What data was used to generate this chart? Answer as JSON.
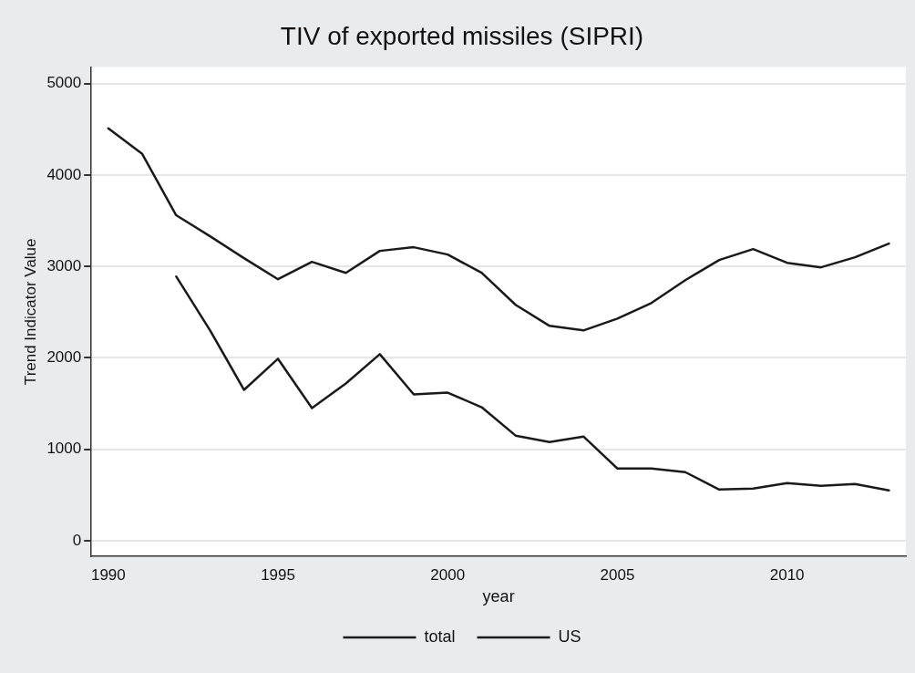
{
  "chart_data": {
    "type": "line",
    "title": "TIV of exported missiles (SIPRI)",
    "xlabel": "year",
    "ylabel": "Trend Indicator Value",
    "x": [
      1990,
      1991,
      1992,
      1993,
      1994,
      1995,
      1996,
      1997,
      1998,
      1999,
      2000,
      2001,
      2002,
      2003,
      2004,
      2005,
      2006,
      2007,
      2008,
      2009,
      2010,
      2011,
      2012,
      2013
    ],
    "series": [
      {
        "name": "total",
        "color": "#1a1a1a",
        "values": [
          4510,
          4230,
          3560,
          3330,
          3090,
          2860,
          3050,
          2930,
          3170,
          3210,
          3130,
          2930,
          2580,
          2350,
          2300,
          2430,
          2600,
          2850,
          3070,
          3190,
          3040,
          2990,
          3100,
          3250
        ]
      },
      {
        "name": "US",
        "color": "#1a1a1a",
        "values": [
          null,
          null,
          2890,
          2300,
          1650,
          1990,
          1450,
          1720,
          2040,
          1600,
          1620,
          1460,
          1150,
          1080,
          1140,
          790,
          790,
          750,
          560,
          570,
          630,
          600,
          620,
          550
        ]
      }
    ],
    "xlim": [
      1989.5,
      2013.5
    ],
    "xticks": [
      1990,
      1995,
      2000,
      2005,
      2010
    ],
    "ylim": [
      -170,
      5180
    ],
    "yticks": [
      0,
      1000,
      2000,
      3000,
      4000,
      5000
    ],
    "grid": "y",
    "legend": "bottom",
    "marker": "none",
    "line_style": "solid"
  }
}
